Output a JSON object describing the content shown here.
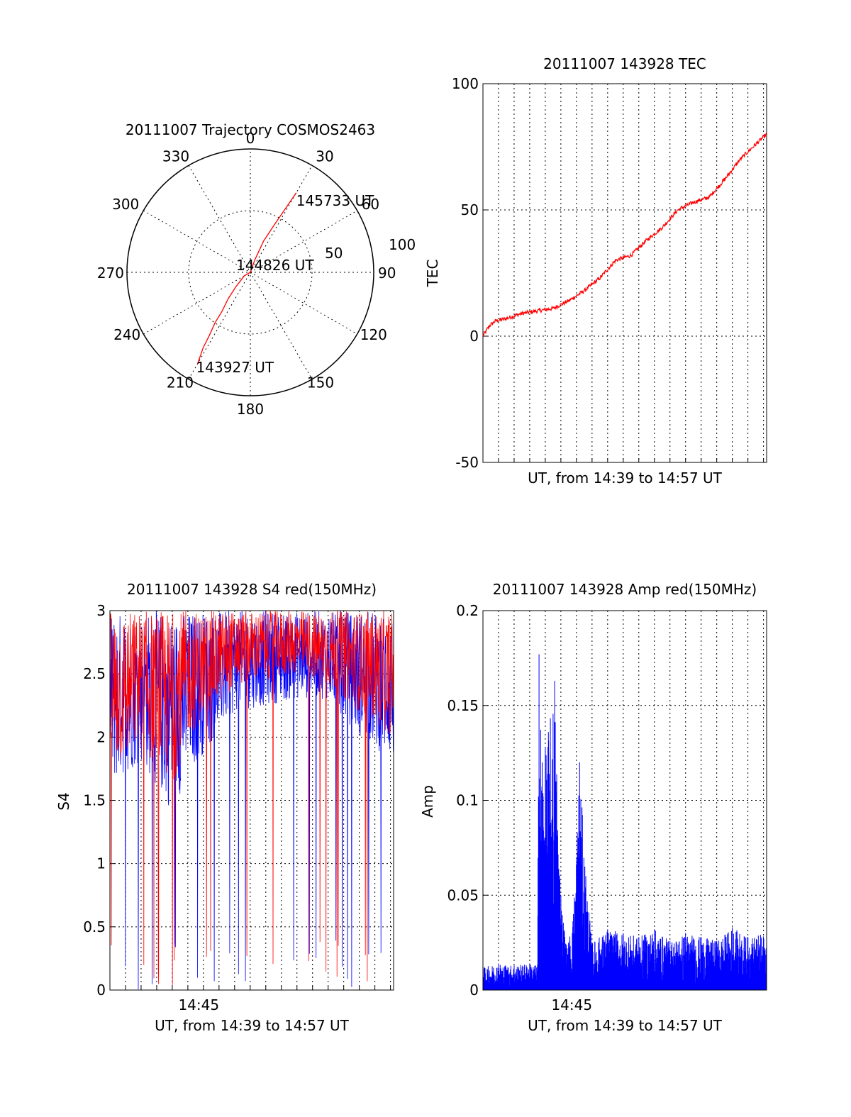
{
  "chart_data": [
    {
      "type": "polar",
      "title": "20111007 Trajectory COSMOS2463",
      "angle_labels": [
        "0",
        "30",
        "60",
        "90",
        "120",
        "150",
        "180",
        "210",
        "240",
        "270",
        "300",
        "330"
      ],
      "radial_labels": [
        "50",
        "100"
      ],
      "rlim": [
        0,
        100
      ],
      "grid": true,
      "series": [
        {
          "color": "#ff0000",
          "points": [
            {
              "az": 210,
              "el": 13
            },
            {
              "az": 212,
              "el": 25
            },
            {
              "az": 213,
              "el": 35
            },
            {
              "az": 215,
              "el": 45
            },
            {
              "az": 216,
              "el": 55
            },
            {
              "az": 220,
              "el": 65
            },
            {
              "az": 225,
              "el": 75
            },
            {
              "az": 240,
              "el": 85
            },
            {
              "az": 330,
              "el": 90
            },
            {
              "az": 20,
              "el": 80
            },
            {
              "az": 23,
              "el": 65
            },
            {
              "az": 27,
              "el": 50
            },
            {
              "az": 29,
              "el": 35
            },
            {
              "az": 30,
              "el": 23
            }
          ]
        }
      ],
      "annotations": [
        {
          "text": "145733 UT",
          "az": 30,
          "el": 23
        },
        {
          "text": "144826 UT",
          "az": 0,
          "el": 90
        },
        {
          "text": "143927 UT",
          "az": 210,
          "el": 13
        }
      ]
    },
    {
      "type": "line",
      "title": "20111007 143928 TEC",
      "ylabel": "TEC",
      "xlabel": "UT, from 14:39 to 14:57 UT",
      "ylim": [
        -50,
        100
      ],
      "yticks": [
        "100",
        "50",
        "0",
        "-50"
      ],
      "xlim": [
        0,
        18.2
      ],
      "grid": true,
      "series": [
        {
          "color": "#ff0000",
          "x": [
            0,
            0.4,
            0.8,
            1.5,
            2.5,
            3.5,
            4.5,
            5.5,
            6.5,
            7.5,
            8.5,
            9.5,
            10.5,
            11.5,
            12.5,
            13.5,
            14.5,
            15.5,
            16.5,
            17.5,
            18.2
          ],
          "y": [
            0,
            4,
            6,
            7,
            9,
            10,
            11,
            14,
            18,
            23,
            30,
            32,
            38,
            43,
            50,
            53,
            55,
            62,
            70,
            76,
            80
          ]
        }
      ]
    },
    {
      "type": "line",
      "title": "20111007 143928 S4 red(150MHz)",
      "ylabel": "S4",
      "xlabel": "UT, from 14:39 to 14:57 UT",
      "xtick_labels": [
        {
          "x": 5.7,
          "label": "14:45"
        }
      ],
      "ylim": [
        0,
        3
      ],
      "yticks": [
        "3",
        "2.5",
        "2",
        "1.5",
        "1",
        "0.5",
        "0"
      ],
      "xlim": [
        0,
        18.2
      ],
      "grid": true,
      "series": [
        {
          "color": "#0000ff",
          "name": "",
          "envelope": {
            "x": [
              0,
              2,
              4,
              5,
              8,
              12,
              14,
              16,
              18.2
            ],
            "low": [
              1.6,
              1.8,
              1.4,
              1.7,
              2.2,
              2.3,
              2.3,
              2.0,
              1.8
            ],
            "high": [
              3,
              3,
              3,
              3,
              3,
              3,
              3,
              3,
              3
            ]
          }
        },
        {
          "color": "#ff0000",
          "name": "",
          "envelope": {
            "x": [
              0,
              2,
              4,
              5,
              8,
              12,
              14,
              16,
              18.2
            ],
            "low": [
              1.7,
              1.9,
              1.6,
              2.0,
              2.4,
              2.5,
              2.4,
              2.2,
              2.0
            ],
            "high": [
              3,
              3,
              3,
              3,
              3,
              3,
              3,
              3,
              3
            ]
          }
        }
      ]
    },
    {
      "type": "line",
      "title": "20111007 143928 Amp red(150MHz)",
      "ylabel": "Amp",
      "xlabel": "UT, from 14:39 to 14:57 UT",
      "xtick_labels": [
        {
          "x": 5.7,
          "label": "14:45"
        }
      ],
      "ylim": [
        0,
        0.2
      ],
      "yticks": [
        "0.2",
        "0.15",
        "0.1",
        "0.05",
        "0"
      ],
      "xlim": [
        0,
        18.2
      ],
      "grid": true,
      "series": [
        {
          "color": "#0000ff",
          "x": [
            0,
            1,
            2,
            3,
            3.5,
            3.6,
            3.8,
            4.2,
            4.6,
            5.0,
            5.4,
            5.8,
            6.2,
            6.6,
            7.0,
            8,
            9,
            10,
            11,
            12,
            13,
            14,
            15,
            16,
            17,
            18.2
          ],
          "y": [
            0.012,
            0.014,
            0.013,
            0.014,
            0.013,
            0.177,
            0.12,
            0.136,
            0.163,
            0.05,
            0.022,
            0.04,
            0.12,
            0.06,
            0.025,
            0.032,
            0.03,
            0.028,
            0.032,
            0.026,
            0.03,
            0.028,
            0.026,
            0.033,
            0.028,
            0.03
          ]
        }
      ]
    }
  ]
}
